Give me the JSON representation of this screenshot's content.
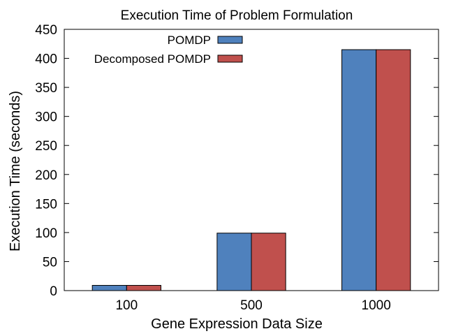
{
  "chart_data": {
    "type": "bar",
    "title": "Execution Time of Problem Formulation",
    "xlabel": "Gene Expression Data Size",
    "ylabel": "Execution Time (seconds)",
    "categories": [
      "100",
      "500",
      "1000"
    ],
    "series": [
      {
        "name": "POMDP",
        "values": [
          9,
          99,
          415
        ],
        "color": "#4f81bd"
      },
      {
        "name": "Decomposed POMDP",
        "values": [
          9,
          99,
          415
        ],
        "color": "#c0504d"
      }
    ],
    "ylim": [
      0,
      450
    ],
    "yticks": [
      0,
      50,
      100,
      150,
      200,
      250,
      300,
      350,
      400,
      450
    ],
    "grid": false,
    "legend_position": "top-center"
  }
}
